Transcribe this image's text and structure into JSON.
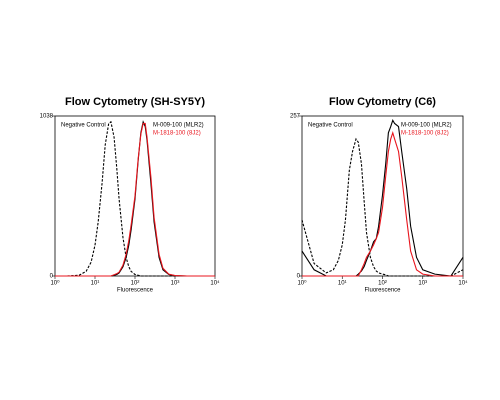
{
  "chart_data": [
    {
      "type": "line",
      "title": "Flow Cytometry (SH-SY5Y)",
      "xlabel": "Fluorescence",
      "xscale": "log",
      "xlim": [
        1,
        10000
      ],
      "xticks": [
        {
          "value": 1,
          "label": "10⁰"
        },
        {
          "value": 10,
          "label": "10¹"
        },
        {
          "value": 100,
          "label": "10²"
        },
        {
          "value": 1000,
          "label": "10³"
        },
        {
          "value": 10000,
          "label": "10⁴"
        }
      ],
      "ylim": [
        0,
        1038
      ],
      "yticks": [
        0,
        1038
      ],
      "x": [
        1,
        2,
        4,
        6,
        8,
        10,
        12,
        15,
        18,
        22,
        25,
        30,
        35,
        40,
        50,
        60,
        70,
        80,
        100,
        120,
        140,
        160,
        180,
        200,
        250,
        300,
        400,
        500,
        700,
        1000,
        2000,
        5000,
        10000
      ],
      "series": [
        {
          "name": "Negative Control",
          "color": "#000000",
          "linestyle": "dashed",
          "values": [
            0,
            0,
            5,
            30,
            90,
            200,
            350,
            600,
            850,
            990,
            1000,
            900,
            700,
            500,
            250,
            120,
            60,
            30,
            10,
            5,
            0,
            0,
            0,
            0,
            0,
            0,
            0,
            0,
            0,
            0,
            0,
            0,
            0
          ]
        },
        {
          "name": "M-009-100 (MLR2)",
          "color": "#000000",
          "linestyle": "solid",
          "values": [
            0,
            0,
            0,
            0,
            0,
            0,
            0,
            0,
            0,
            0,
            0,
            5,
            10,
            20,
            60,
            120,
            200,
            300,
            500,
            750,
            930,
            1000,
            970,
            880,
            600,
            350,
            120,
            40,
            10,
            2,
            0,
            0,
            0
          ]
        },
        {
          "name": "M-1818-100 (8J2)",
          "color": "#e8141c",
          "linestyle": "solid",
          "values": [
            0,
            0,
            0,
            0,
            0,
            0,
            0,
            0,
            0,
            0,
            0,
            8,
            15,
            25,
            70,
            140,
            230,
            330,
            520,
            760,
            920,
            990,
            990,
            900,
            640,
            380,
            140,
            50,
            12,
            3,
            0,
            0,
            0
          ]
        }
      ]
    },
    {
      "type": "line",
      "title": "Flow Cytometry (C6)",
      "xlabel": "Fluorescence",
      "xscale": "log",
      "xlim": [
        1,
        10000
      ],
      "xticks": [
        {
          "value": 1,
          "label": "10⁰"
        },
        {
          "value": 10,
          "label": "10¹"
        },
        {
          "value": 100,
          "label": "10²"
        },
        {
          "value": 1000,
          "label": "10³"
        },
        {
          "value": 10000,
          "label": "10⁴"
        }
      ],
      "ylim": [
        0,
        257
      ],
      "yticks": [
        0,
        257
      ],
      "x": [
        1,
        2,
        4,
        6,
        8,
        10,
        12,
        15,
        18,
        22,
        25,
        30,
        35,
        40,
        50,
        60,
        70,
        80,
        100,
        120,
        140,
        160,
        180,
        200,
        250,
        300,
        400,
        500,
        700,
        1000,
        2000,
        5000,
        10000
      ],
      "series": [
        {
          "name": "Negative Control",
          "color": "#000000",
          "linestyle": "dashed",
          "values": [
            90,
            20,
            5,
            10,
            25,
            50,
            90,
            170,
            200,
            220,
            215,
            180,
            120,
            70,
            30,
            15,
            8,
            5,
            3,
            2,
            0,
            0,
            0,
            0,
            0,
            0,
            0,
            0,
            0,
            0,
            0,
            0,
            10
          ]
        },
        {
          "name": "M-009-100 (MLR2)",
          "color": "#000000",
          "linestyle": "solid",
          "values": [
            40,
            10,
            0,
            0,
            0,
            0,
            0,
            0,
            0,
            0,
            3,
            8,
            15,
            25,
            40,
            55,
            60,
            80,
            130,
            180,
            230,
            240,
            250,
            245,
            240,
            200,
            140,
            80,
            30,
            10,
            3,
            0,
            30
          ]
        },
        {
          "name": "M-1818-100 (8J2)",
          "color": "#e8141c",
          "linestyle": "solid",
          "values": [
            0,
            0,
            0,
            0,
            0,
            0,
            0,
            0,
            0,
            0,
            0,
            10,
            20,
            30,
            40,
            50,
            60,
            70,
            110,
            160,
            200,
            220,
            230,
            220,
            200,
            160,
            90,
            40,
            10,
            3,
            0,
            0,
            0
          ]
        }
      ]
    }
  ]
}
